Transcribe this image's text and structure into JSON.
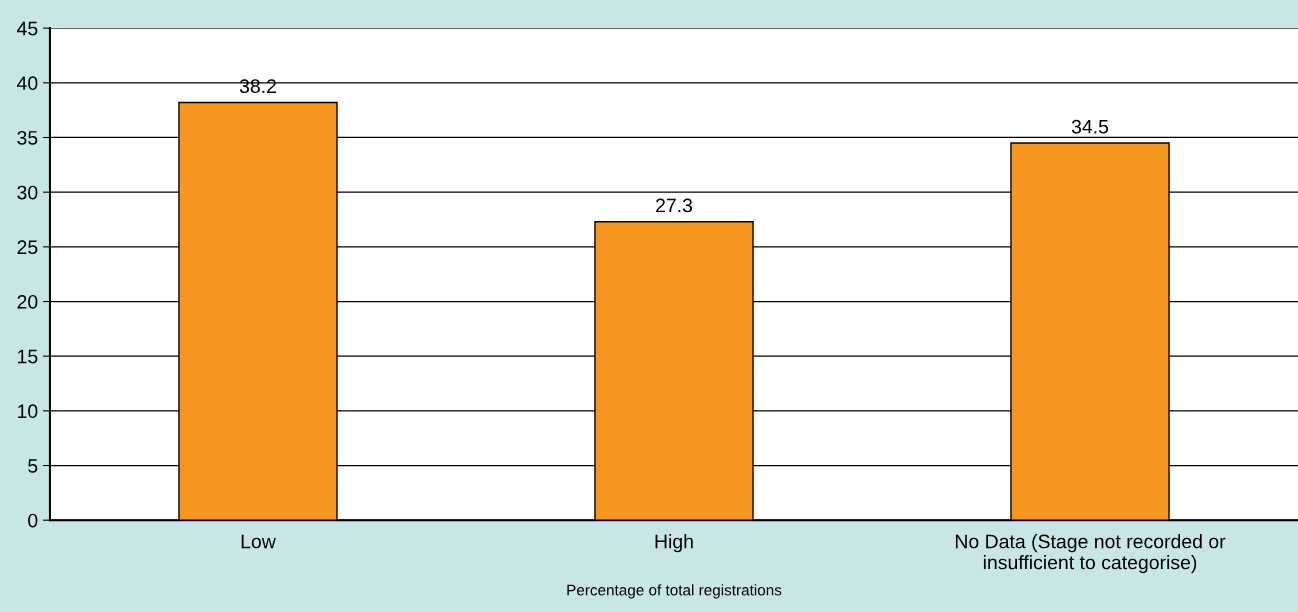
{
  "chart_data": {
    "type": "bar",
    "xlabel": "Percentage of total registrations",
    "categories": [
      "Low",
      "High",
      "No Data (Stage not recorded or\ninsufficient to categorise)"
    ],
    "values": [
      38.2,
      27.3,
      34.5
    ],
    "color": "#f7971d",
    "ylim": [
      0,
      45
    ],
    "yticks": [
      0,
      5,
      10,
      15,
      20,
      25,
      30,
      35,
      40,
      45
    ],
    "grid": "y",
    "data_labels": true
  }
}
